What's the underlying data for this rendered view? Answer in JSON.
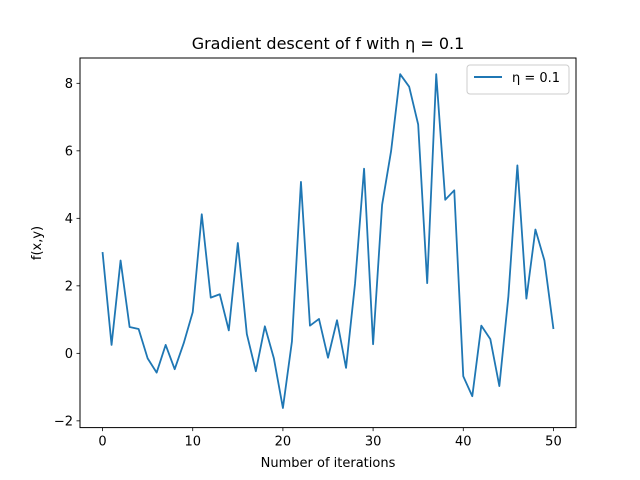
{
  "chart_data": {
    "type": "line",
    "title": "Gradient descent of f with η =  0.1",
    "xlabel": "Number of iterations",
    "ylabel": "f(x,y)",
    "xlim": [
      -2.5,
      52.5
    ],
    "ylim": [
      -2.2,
      8.75
    ],
    "xticks": [
      0,
      10,
      20,
      30,
      40,
      50
    ],
    "yticks": [
      -2,
      0,
      2,
      4,
      6,
      8
    ],
    "grid": false,
    "legend_position": "top-right",
    "series": [
      {
        "name": "η = 0.1",
        "color": "#1f77b4",
        "x": [
          0,
          1,
          2,
          3,
          4,
          5,
          6,
          7,
          8,
          9,
          10,
          11,
          12,
          13,
          14,
          15,
          16,
          17,
          18,
          19,
          20,
          21,
          22,
          23,
          24,
          25,
          26,
          27,
          28,
          29,
          30,
          31,
          32,
          33,
          34,
          35,
          36,
          37,
          38,
          39,
          40,
          41,
          42,
          43,
          44,
          45,
          46,
          47,
          48,
          49,
          50
        ],
        "values": [
          3.0,
          0.25,
          2.75,
          0.78,
          0.72,
          -0.15,
          -0.57,
          0.25,
          -0.47,
          0.3,
          1.22,
          4.12,
          1.65,
          1.75,
          0.68,
          3.27,
          0.57,
          -0.53,
          0.8,
          -0.15,
          -1.62,
          0.35,
          5.08,
          0.82,
          1.02,
          -0.13,
          0.98,
          -0.43,
          2.07,
          5.47,
          0.27,
          4.4,
          6.0,
          8.27,
          7.9,
          6.78,
          2.08,
          8.27,
          4.55,
          4.83,
          -0.68,
          -1.27,
          0.82,
          0.42,
          -0.97,
          1.68,
          5.57,
          1.62,
          3.67,
          2.75,
          0.72
        ]
      }
    ]
  }
}
